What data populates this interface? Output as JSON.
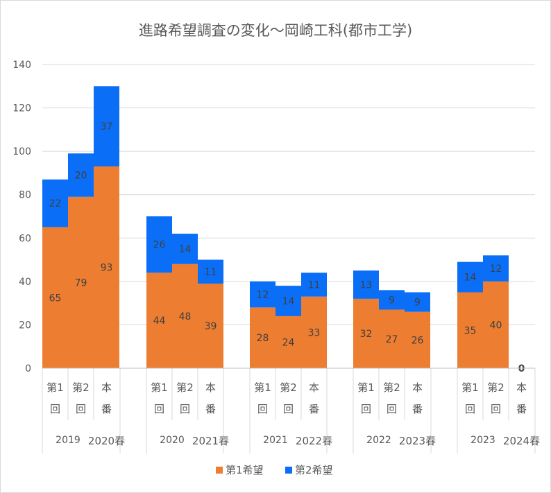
{
  "chart_data": {
    "type": "bar",
    "stacked": true,
    "title": "進路希望調査の変化～岡崎工科(都市工学)",
    "xlabel": "",
    "ylabel": "",
    "ylim": [
      0,
      140
    ],
    "yticks": [
      0,
      20,
      40,
      60,
      80,
      100,
      120,
      140
    ],
    "grid": true,
    "legend_position": "bottom",
    "colors": {
      "series1": "#ED7D31",
      "series2": "#0A6EF6"
    },
    "groups": [
      {
        "year": "2019",
        "spring": "2020春",
        "bars": [
          {
            "label": [
              "第1",
              "回"
            ],
            "v1": 65,
            "v2": 22
          },
          {
            "label": [
              "第2",
              "回"
            ],
            "v1": 79,
            "v2": 20
          },
          {
            "label": [
              "本",
              "番"
            ],
            "v1": 93,
            "v2": 37
          }
        ]
      },
      {
        "year": "2020",
        "spring": "2021春",
        "bars": [
          {
            "label": [
              "第1",
              "回"
            ],
            "v1": 44,
            "v2": 26
          },
          {
            "label": [
              "第2",
              "回"
            ],
            "v1": 48,
            "v2": 14
          },
          {
            "label": [
              "本",
              "番"
            ],
            "v1": 39,
            "v2": 11
          }
        ]
      },
      {
        "year": "2021",
        "spring": "2022春",
        "bars": [
          {
            "label": [
              "第1",
              "回"
            ],
            "v1": 28,
            "v2": 12
          },
          {
            "label": [
              "第2",
              "回"
            ],
            "v1": 24,
            "v2": 14
          },
          {
            "label": [
              "本",
              "番"
            ],
            "v1": 33,
            "v2": 11
          }
        ]
      },
      {
        "year": "2022",
        "spring": "2023春",
        "bars": [
          {
            "label": [
              "第1",
              "回"
            ],
            "v1": 32,
            "v2": 13
          },
          {
            "label": [
              "第2",
              "回"
            ],
            "v1": 27,
            "v2": 9
          },
          {
            "label": [
              "本",
              "番"
            ],
            "v1": 26,
            "v2": 9
          }
        ]
      },
      {
        "year": "2023",
        "spring": "2024春",
        "bars": [
          {
            "label": [
              "第1",
              "回"
            ],
            "v1": 35,
            "v2": 14
          },
          {
            "label": [
              "第2",
              "回"
            ],
            "v1": 40,
            "v2": 12
          },
          {
            "label": [
              "本",
              "番"
            ],
            "v1": 0,
            "v2": null,
            "single_label": "0"
          }
        ]
      }
    ],
    "series": [
      {
        "name": "第1希望"
      },
      {
        "name": "第2希望"
      }
    ]
  }
}
